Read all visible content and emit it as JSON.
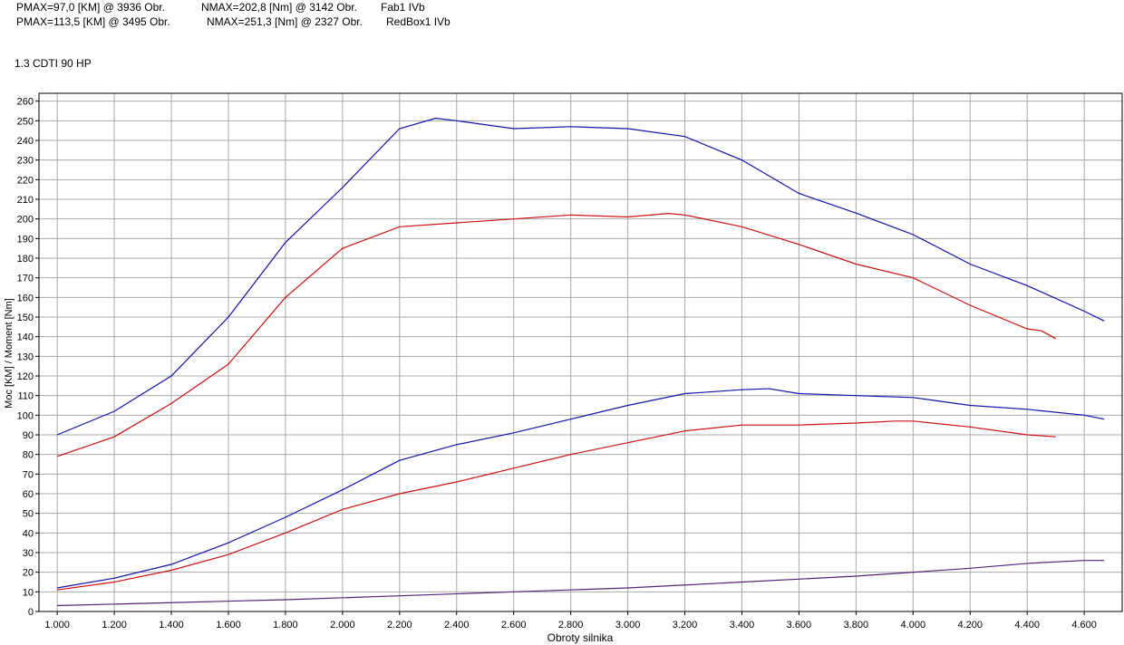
{
  "chart_data": {
    "type": "line",
    "header": [
      {
        "power": "PMAX=97,0 [KM] @ 3936 Obr.",
        "torque": "NMAX=202,8 [Nm] @ 3142 Obr.",
        "name": "Fab1 IVb"
      },
      {
        "power": "PMAX=113,5 [KM] @ 3495 Obr.",
        "torque": "NMAX=251,3 [Nm] @ 2327 Obr.",
        "name": "RedBox1 IVb"
      }
    ],
    "subtitle": "1.3 CDTI 90 HP",
    "x_label": "Obroty silnika",
    "y_label": "Moc [KM] / Moment [Nm]",
    "xlim": [
      936,
      4733
    ],
    "ylim": [
      0,
      264
    ],
    "xticks": [
      {
        "value": 1000,
        "label": "1.000"
      },
      {
        "value": 1200,
        "label": "1.200"
      },
      {
        "value": 1400,
        "label": "1.400"
      },
      {
        "value": 1600,
        "label": "1.600"
      },
      {
        "value": 1800,
        "label": "1.800"
      },
      {
        "value": 2000,
        "label": "2.000"
      },
      {
        "value": 2200,
        "label": "2.200"
      },
      {
        "value": 2400,
        "label": "2.400"
      },
      {
        "value": 2600,
        "label": "2.600"
      },
      {
        "value": 2800,
        "label": "2.800"
      },
      {
        "value": 3000,
        "label": "3.000"
      },
      {
        "value": 3200,
        "label": "3.200"
      },
      {
        "value": 3400,
        "label": "3.400"
      },
      {
        "value": 3600,
        "label": "3.600"
      },
      {
        "value": 3800,
        "label": "3.800"
      },
      {
        "value": 4000,
        "label": "4.000"
      },
      {
        "value": 4200,
        "label": "4.200"
      },
      {
        "value": 4400,
        "label": "4.400"
      },
      {
        "value": 4600,
        "label": "4.600"
      }
    ],
    "yticks": [
      0,
      10,
      20,
      30,
      40,
      50,
      60,
      70,
      80,
      90,
      100,
      110,
      120,
      130,
      140,
      150,
      160,
      170,
      180,
      190,
      200,
      210,
      220,
      230,
      240,
      250,
      260
    ],
    "grid": true,
    "series": [
      {
        "color": "#cc1111",
        "x": [
          1000,
          1200,
          1400,
          1600,
          1800,
          2000,
          2200,
          2400,
          2600,
          2800,
          3000,
          3142,
          3200,
          3400,
          3600,
          3800,
          4000,
          4200,
          4400,
          4450,
          4500
        ],
        "values": [
          79,
          89,
          106,
          126,
          160,
          185,
          196,
          198,
          200,
          202,
          201,
          202.8,
          202,
          196,
          187,
          177,
          170,
          156,
          144,
          143,
          139
        ]
      },
      {
        "color": "#1111aa",
        "x": [
          1000,
          1200,
          1400,
          1600,
          1800,
          2000,
          2200,
          2327,
          2400,
          2600,
          2800,
          3000,
          3200,
          3400,
          3600,
          3800,
          4000,
          4200,
          4400,
          4600,
          4670
        ],
        "values": [
          90,
          102,
          120,
          150,
          188,
          216,
          246,
          251.3,
          250,
          246,
          247,
          246,
          242,
          230,
          213,
          203,
          192,
          177,
          166,
          153,
          148
        ]
      },
      {
        "color": "#cc1111",
        "x": [
          1000,
          1200,
          1400,
          1600,
          1800,
          2000,
          2200,
          2400,
          2600,
          2800,
          3000,
          3200,
          3400,
          3600,
          3800,
          3936,
          4000,
          4200,
          4400,
          4500
        ],
        "values": [
          11,
          15,
          21,
          29,
          40,
          52,
          60,
          66,
          73,
          80,
          86,
          92,
          95,
          95,
          96,
          97,
          97,
          94,
          90,
          89
        ]
      },
      {
        "color": "#1111aa",
        "x": [
          1000,
          1200,
          1400,
          1600,
          1800,
          2000,
          2200,
          2400,
          2600,
          2800,
          3000,
          3200,
          3400,
          3495,
          3600,
          3800,
          4000,
          4200,
          4400,
          4600,
          4670
        ],
        "values": [
          12,
          17,
          24,
          35,
          48,
          62,
          77,
          85,
          91,
          98,
          105,
          111,
          113,
          113.5,
          111,
          110,
          109,
          105,
          103,
          100,
          98
        ]
      },
      {
        "color": "#552277",
        "x": [
          1000,
          1400,
          1800,
          2200,
          2600,
          3000,
          3400,
          3800,
          4200,
          4400,
          4600,
          4670
        ],
        "values": [
          3,
          4.5,
          6,
          8,
          10,
          12,
          15,
          18,
          22,
          24.5,
          26,
          26
        ]
      }
    ]
  }
}
